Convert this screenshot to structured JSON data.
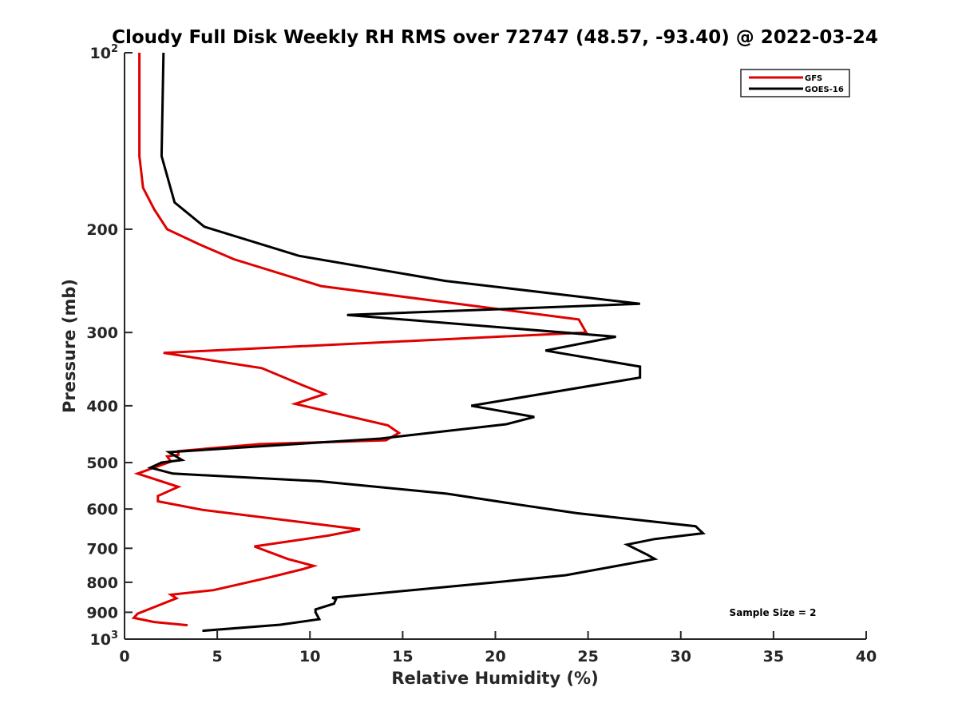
{
  "chart_data": {
    "type": "line",
    "title": "Cloudy Full Disk Weekly RH RMS over 72747 (48.57, -93.40) @ 2022-03-24",
    "xlabel": "Relative Humidity (%)",
    "ylabel": "Pressure (mb)",
    "xlim": [
      0,
      40
    ],
    "ylim": [
      100,
      1000
    ],
    "yscale": "log",
    "y_reversed": true,
    "xticks": [
      0,
      5,
      10,
      15,
      20,
      25,
      30,
      35,
      40
    ],
    "xtick_labels": [
      "0",
      "5",
      "10",
      "15",
      "20",
      "25",
      "30",
      "35",
      "40"
    ],
    "yticks": [
      {
        "value": 100,
        "base": "10",
        "exp": "2"
      },
      {
        "value": 200,
        "label": "200"
      },
      {
        "value": 300,
        "label": "300"
      },
      {
        "value": 400,
        "label": "400"
      },
      {
        "value": 500,
        "label": "500"
      },
      {
        "value": 600,
        "label": "600"
      },
      {
        "value": 700,
        "label": "700"
      },
      {
        "value": 800,
        "label": "800"
      },
      {
        "value": 900,
        "label": "900"
      },
      {
        "value": 1000,
        "base": "10",
        "exp": "3"
      }
    ],
    "legend_position": "top-right",
    "annotation": "Sample Size = 2",
    "series": [
      {
        "name": "GFS",
        "color": "#e00000",
        "points": [
          [
            0.8,
            100
          ],
          [
            0.8,
            150
          ],
          [
            1.0,
            170
          ],
          [
            1.6,
            185
          ],
          [
            2.3,
            200
          ],
          [
            4.0,
            212
          ],
          [
            5.9,
            225
          ],
          [
            10.6,
            250
          ],
          [
            24.5,
            285
          ],
          [
            24.9,
            300
          ],
          [
            2.1,
            325
          ],
          [
            7.4,
            345
          ],
          [
            9.7,
            370
          ],
          [
            10.8,
            382
          ],
          [
            9.2,
            397
          ],
          [
            14.2,
            432
          ],
          [
            14.8,
            445
          ],
          [
            14.1,
            458
          ],
          [
            7.3,
            465
          ],
          [
            2.9,
            478
          ],
          [
            2.9,
            485
          ],
          [
            2.3,
            488
          ],
          [
            2.5,
            498
          ],
          [
            0.7,
            522
          ],
          [
            2.9,
            550
          ],
          [
            1.8,
            570
          ],
          [
            1.8,
            582
          ],
          [
            4.2,
            602
          ],
          [
            12.7,
            650
          ],
          [
            11.0,
            666
          ],
          [
            7.0,
            695
          ],
          [
            8.8,
            730
          ],
          [
            10.2,
            750
          ],
          [
            9.6,
            760
          ],
          [
            7.8,
            785
          ],
          [
            4.8,
            825
          ],
          [
            2.5,
            840
          ],
          [
            2.8,
            852
          ],
          [
            0.7,
            905
          ],
          [
            0.5,
            920
          ],
          [
            1.6,
            935
          ],
          [
            3.4,
            947
          ]
        ]
      },
      {
        "name": "GOES-16",
        "color": "#000000",
        "points": [
          [
            2.1,
            100
          ],
          [
            2.0,
            150
          ],
          [
            2.7,
            180
          ],
          [
            4.3,
            198
          ],
          [
            9.4,
            222
          ],
          [
            17.3,
            245
          ],
          [
            27.8,
            268
          ],
          [
            12.0,
            280
          ],
          [
            26.5,
            305
          ],
          [
            22.7,
            322
          ],
          [
            27.8,
            343
          ],
          [
            27.8,
            358
          ],
          [
            18.7,
            400
          ],
          [
            22.1,
            418
          ],
          [
            20.6,
            430
          ],
          [
            13.8,
            455
          ],
          [
            2.4,
            480
          ],
          [
            3.1,
            495
          ],
          [
            2.0,
            500
          ],
          [
            1.4,
            510
          ],
          [
            2.6,
            522
          ],
          [
            10.5,
            538
          ],
          [
            17.4,
            565
          ],
          [
            21.3,
            590
          ],
          [
            24.4,
            610
          ],
          [
            30.8,
            642
          ],
          [
            31.2,
            660
          ],
          [
            28.6,
            675
          ],
          [
            27.1,
            690
          ],
          [
            28.2,
            718
          ],
          [
            28.6,
            730
          ],
          [
            23.8,
            778
          ],
          [
            20.0,
            800
          ],
          [
            11.2,
            850
          ],
          [
            11.4,
            855
          ],
          [
            11.3,
            870
          ],
          [
            10.3,
            890
          ],
          [
            10.3,
            900
          ],
          [
            10.5,
            925
          ],
          [
            8.4,
            945
          ],
          [
            4.2,
            968
          ]
        ]
      }
    ]
  }
}
